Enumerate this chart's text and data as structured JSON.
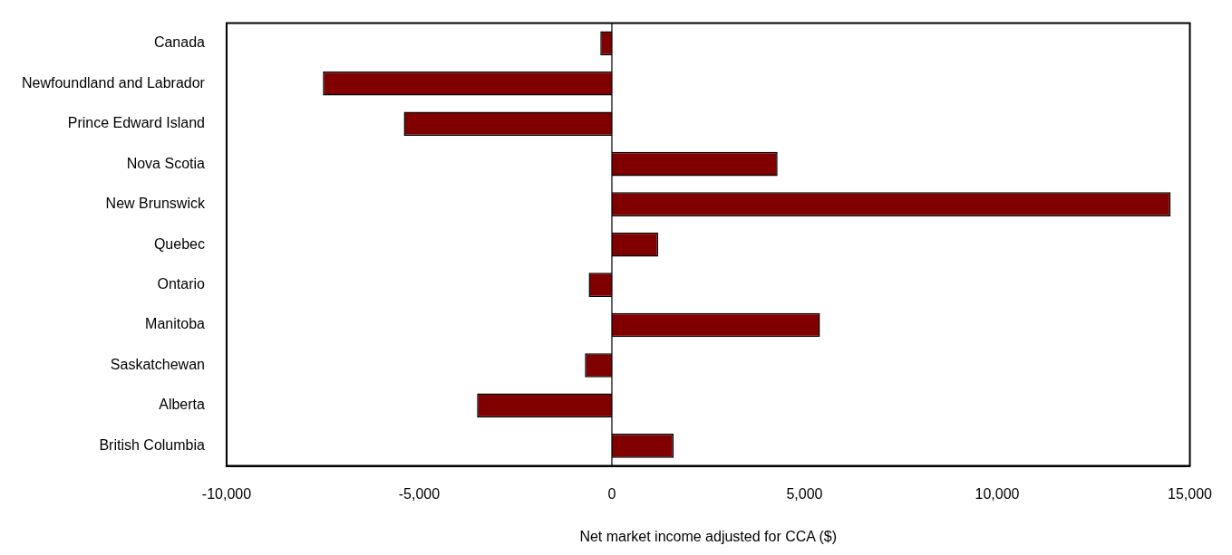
{
  "chart_data": {
    "type": "bar",
    "orientation": "horizontal",
    "xlabel": "Net market income adjusted for CCA ($)",
    "categories": [
      "Canada",
      "Newfoundland and Labrador",
      "Prince Edward Island",
      "Nova Scotia",
      "New Brunswick",
      "Quebec",
      "Ontario",
      "Manitoba",
      "Saskatchewan",
      "Alberta",
      "British Columbia"
    ],
    "values": [
      -300,
      -7500,
      -5400,
      4300,
      14500,
      1200,
      -600,
      5400,
      -700,
      -3500,
      1600
    ],
    "color": "#800000",
    "xlim": [
      -10000,
      15000
    ],
    "xticks": [
      {
        "value": -10000,
        "label": "-10,000"
      },
      {
        "value": -5000,
        "label": "-5,000"
      },
      0,
      {
        "value": 5000,
        "label": "5,000"
      },
      {
        "value": 10000,
        "label": "10,000"
      },
      {
        "value": 15000,
        "label": "15,000"
      }
    ],
    "ref_lines": [
      {
        "axis": "x",
        "value": 0,
        "color": "#000000"
      }
    ],
    "grid": false,
    "legend": false
  }
}
